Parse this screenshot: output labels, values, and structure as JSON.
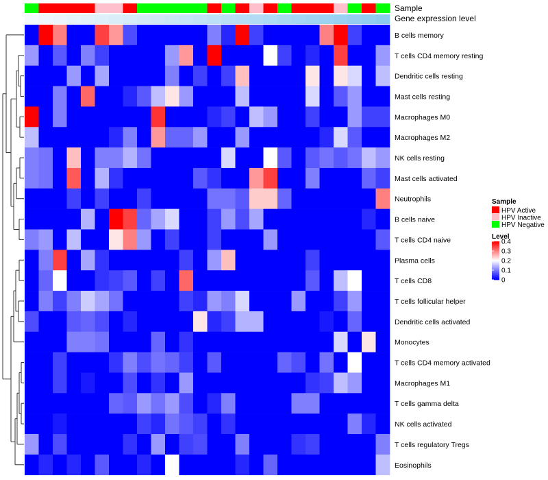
{
  "chart_data": {
    "type": "heatmap",
    "annotation_labels": [
      "Sample",
      "Gene expression level"
    ],
    "samples": [
      "Negative",
      "Active",
      "Active",
      "Active",
      "Active",
      "Inactive",
      "Inactive",
      "Active",
      "Negative",
      "Negative",
      "Negative",
      "Negative",
      "Negative",
      "Active",
      "Negative",
      "Active",
      "Inactive",
      "Active",
      "Negative",
      "Active",
      "Active",
      "Active",
      "Inactive",
      "Negative",
      "Active",
      "Negative"
    ],
    "rows": [
      {
        "label": "B cells memory",
        "values": [
          0.0,
          0.4,
          0.3,
          0.0,
          0.0,
          0.35,
          0.28,
          0.06,
          0.0,
          0.0,
          0.0,
          0.0,
          0.0,
          0.1,
          0.03,
          0.4,
          0.05,
          0.0,
          0.0,
          0.0,
          0.0,
          0.3,
          0.4,
          0.05,
          0.0,
          0.0
        ]
      },
      {
        "label": "T cells CD4 memory resting",
        "values": [
          0.12,
          0.0,
          0.07,
          0.0,
          0.1,
          0.05,
          0.0,
          0.0,
          0.0,
          0.0,
          0.12,
          0.28,
          0.0,
          0.4,
          0.0,
          0.0,
          0.0,
          0.2,
          0.05,
          0.0,
          0.03,
          0.0,
          0.35,
          0.0,
          0.0,
          0.12
        ]
      },
      {
        "label": "Dendritic cells resting",
        "values": [
          0.0,
          0.0,
          0.0,
          0.12,
          0.0,
          0.13,
          0.0,
          0.0,
          0.0,
          0.0,
          0.1,
          0.0,
          0.05,
          0.0,
          0.05,
          0.25,
          0.0,
          0.0,
          0.0,
          0.0,
          0.22,
          0.0,
          0.22,
          0.17,
          0.0,
          0.15
        ]
      },
      {
        "label": "Mast cells resting",
        "values": [
          0.0,
          0.0,
          0.1,
          0.0,
          0.32,
          0.0,
          0.0,
          0.03,
          0.07,
          0.15,
          0.22,
          0.12,
          0.0,
          0.0,
          0.0,
          0.15,
          0.0,
          0.0,
          0.0,
          0.0,
          0.17,
          0.0,
          0.07,
          0.12,
          0.0,
          0.0
        ]
      },
      {
        "label": "Macrophages M0",
        "values": [
          0.4,
          0.0,
          0.1,
          0.0,
          0.0,
          0.0,
          0.0,
          0.0,
          0.0,
          0.36,
          0.0,
          0.0,
          0.0,
          0.03,
          0.05,
          0.0,
          0.15,
          0.12,
          0.0,
          0.0,
          0.05,
          0.0,
          0.0,
          0.12,
          0.05,
          0.05
        ]
      },
      {
        "label": "Macrophages M2",
        "values": [
          0.15,
          0.0,
          0.0,
          0.0,
          0.0,
          0.0,
          0.03,
          0.1,
          0.0,
          0.28,
          0.08,
          0.08,
          0.12,
          0.0,
          0.0,
          0.12,
          0.0,
          0.0,
          0.0,
          0.0,
          0.0,
          0.03,
          0.17,
          0.07,
          0.0,
          0.0
        ]
      },
      {
        "label": "NK cells resting",
        "values": [
          0.1,
          0.09,
          0.0,
          0.25,
          0.0,
          0.1,
          0.1,
          0.14,
          0.09,
          0.0,
          0.0,
          0.0,
          0.0,
          0.0,
          0.17,
          0.0,
          0.0,
          0.2,
          0.07,
          0.0,
          0.07,
          0.09,
          0.07,
          0.09,
          0.15,
          0.12
        ]
      },
      {
        "label": "Mast cells activated",
        "values": [
          0.1,
          0.09,
          0.0,
          0.33,
          0.0,
          0.14,
          0.04,
          0.0,
          0.0,
          0.0,
          0.0,
          0.0,
          0.07,
          0.04,
          0.0,
          0.0,
          0.28,
          0.35,
          0.0,
          0.0,
          0.1,
          0.0,
          0.0,
          0.0,
          0.08,
          0.05
        ]
      },
      {
        "label": "Neutrophils",
        "values": [
          0.0,
          0.0,
          0.0,
          0.05,
          0.0,
          0.05,
          0.0,
          0.0,
          0.05,
          0.0,
          0.0,
          0.0,
          0.0,
          0.09,
          0.09,
          0.07,
          0.24,
          0.24,
          0.08,
          0.0,
          0.0,
          0.0,
          0.0,
          0.0,
          0.0,
          0.3
        ]
      },
      {
        "label": "B cells naive",
        "values": [
          0.0,
          0.0,
          0.0,
          0.0,
          0.14,
          0.0,
          0.4,
          0.35,
          0.08,
          0.13,
          0.17,
          0.0,
          0.0,
          0.05,
          0.12,
          0.06,
          0.13,
          0.0,
          0.0,
          0.0,
          0.0,
          0.0,
          0.0,
          0.0,
          0.03,
          0.0
        ]
      },
      {
        "label": "T cells CD4 naive",
        "values": [
          0.1,
          0.12,
          0.0,
          0.15,
          0.0,
          0.0,
          0.22,
          0.3,
          0.12,
          0.0,
          0.05,
          0.0,
          0.0,
          0.05,
          0.0,
          0.0,
          0.0,
          0.12,
          0.0,
          0.0,
          0.0,
          0.0,
          0.0,
          0.0,
          0.0,
          0.07
        ]
      },
      {
        "label": "Plasma cells",
        "values": [
          0.0,
          0.1,
          0.35,
          0.0,
          0.13,
          0.04,
          0.0,
          0.0,
          0.0,
          0.0,
          0.0,
          0.05,
          0.0,
          0.12,
          0.25,
          0.0,
          0.0,
          0.0,
          0.0,
          0.0,
          0.05,
          0.0,
          0.0,
          0.0,
          0.0,
          0.0
        ]
      },
      {
        "label": "T cells CD8",
        "values": [
          0.0,
          0.08,
          0.2,
          0.0,
          0.0,
          0.04,
          0.05,
          0.07,
          0.0,
          0.05,
          0.0,
          0.32,
          0.0,
          0.0,
          0.0,
          0.0,
          0.0,
          0.0,
          0.0,
          0.0,
          0.07,
          0.0,
          0.15,
          0.2,
          0.0,
          0.0
        ]
      },
      {
        "label": "T cells follicular helper",
        "values": [
          0.0,
          0.1,
          0.05,
          0.1,
          0.16,
          0.13,
          0.09,
          0.0,
          0.0,
          0.0,
          0.0,
          0.05,
          0.03,
          0.12,
          0.1,
          0.17,
          0.0,
          0.0,
          0.0,
          0.12,
          0.0,
          0.0,
          0.05,
          0.12,
          0.0,
          0.0
        ]
      },
      {
        "label": "Dendritic cells activated",
        "values": [
          0.06,
          0.0,
          0.0,
          0.07,
          0.08,
          0.06,
          0.0,
          0.03,
          0.0,
          0.0,
          0.0,
          0.0,
          0.22,
          0.03,
          0.05,
          0.14,
          0.14,
          0.0,
          0.0,
          0.0,
          0.0,
          0.02,
          0.0,
          0.08,
          0.0,
          0.0
        ]
      },
      {
        "label": "Monocytes",
        "values": [
          0.0,
          0.0,
          0.0,
          0.1,
          0.1,
          0.09,
          0.0,
          0.0,
          0.0,
          0.08,
          0.0,
          0.04,
          0.0,
          0.0,
          0.0,
          0.0,
          0.0,
          0.0,
          0.0,
          0.0,
          0.0,
          0.0,
          0.17,
          0.0,
          0.22,
          0.0
        ]
      },
      {
        "label": "T cells CD4 memory activated",
        "values": [
          0.0,
          0.0,
          0.05,
          0.0,
          0.0,
          0.0,
          0.04,
          0.1,
          0.06,
          0.09,
          0.08,
          0.05,
          0.0,
          0.07,
          0.0,
          0.0,
          0.0,
          0.0,
          0.08,
          0.06,
          0.0,
          0.09,
          0.0,
          0.2,
          0.0,
          0.0
        ]
      },
      {
        "label": "Macrophages M1",
        "values": [
          0.0,
          0.0,
          0.05,
          0.0,
          0.02,
          0.0,
          0.0,
          0.06,
          0.0,
          0.04,
          0.0,
          0.12,
          0.0,
          0.0,
          0.0,
          0.0,
          0.0,
          0.0,
          0.0,
          0.0,
          0.04,
          0.05,
          0.15,
          0.12,
          0.0,
          0.0
        ]
      },
      {
        "label": "T cells gamma delta",
        "values": [
          0.0,
          0.0,
          0.0,
          0.0,
          0.0,
          0.0,
          0.08,
          0.07,
          0.12,
          0.09,
          0.12,
          0.06,
          0.0,
          0.03,
          0.1,
          0.0,
          0.0,
          0.0,
          0.0,
          0.1,
          0.1,
          0.0,
          0.0,
          0.0,
          0.0,
          0.0
        ]
      },
      {
        "label": "NK cells activated",
        "values": [
          0.0,
          0.0,
          0.02,
          0.0,
          0.0,
          0.0,
          0.0,
          0.0,
          0.05,
          0.03,
          0.09,
          0.07,
          0.05,
          0.0,
          0.04,
          0.0,
          0.0,
          0.0,
          0.0,
          0.0,
          0.0,
          0.0,
          0.0,
          0.1,
          0.03,
          0.0
        ]
      },
      {
        "label": "T cells regulatory  Tregs",
        "values": [
          0.12,
          0.0,
          0.06,
          0.0,
          0.0,
          0.0,
          0.0,
          0.04,
          0.0,
          0.12,
          0.0,
          0.05,
          0.06,
          0.0,
          0.0,
          0.1,
          0.0,
          0.0,
          0.0,
          0.04,
          0.05,
          0.0,
          0.0,
          0.0,
          0.0,
          0.1
        ]
      },
      {
        "label": "Eosinophils",
        "values": [
          0.0,
          0.03,
          0.0,
          0.03,
          0.0,
          0.07,
          0.0,
          0.0,
          0.03,
          0.0,
          0.2,
          0.0,
          0.0,
          0.0,
          0.0,
          0.03,
          0.0,
          0.08,
          0.0,
          0.0,
          0.0,
          0.0,
          0.0,
          0.0,
          0.0,
          0.15
        ]
      }
    ],
    "legend_sample": {
      "title": "Sample",
      "entries": [
        {
          "label": "HPV Active",
          "key": "Active",
          "color": "#ff0000"
        },
        {
          "label": "HPV Inactive",
          "key": "Inactive",
          "color": "#ffc0cb"
        },
        {
          "label": "HPV Negative",
          "key": "Negative",
          "color": "#00ff00"
        }
      ]
    },
    "legend_level": {
      "title": "Level",
      "ticks": [
        0.4,
        0.3,
        0.2,
        0.1,
        0
      ],
      "tick_labels": [
        "0.4",
        "0.3",
        "0.2",
        "0.1",
        "0"
      ],
      "range": [
        0,
        0.4
      ]
    },
    "colors": {
      "low": "#0000ff",
      "mid": "#ffffff",
      "high": "#ff0000",
      "expression_bar_start": "#f3f9fc",
      "expression_bar_end": "#8ccbf0"
    }
  }
}
